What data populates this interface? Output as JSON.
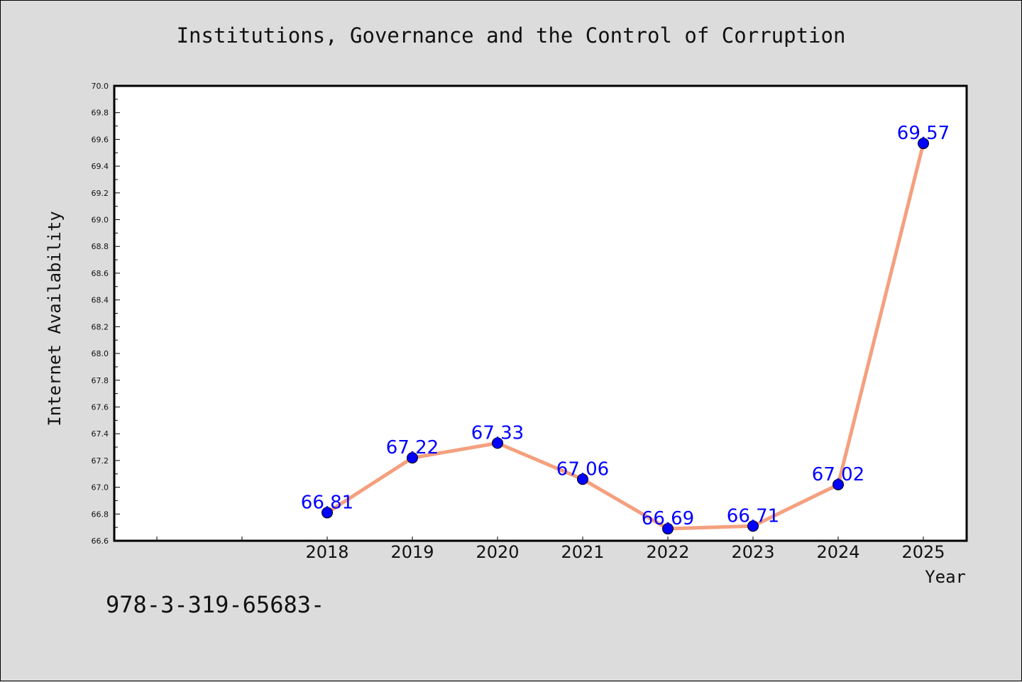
{
  "header": {
    "title": "Institutions, Governance and the Control of Corruption"
  },
  "footer": {
    "identifier": "978-3-319-65683-"
  },
  "colors": {
    "background": "#dcdcdc",
    "plot_background": "#ffffff",
    "line": "#f4a07f",
    "marker": "#0000ff",
    "data_label": "#0000ff"
  },
  "chart_data": {
    "type": "line",
    "title": "Institutions, Governance and the Control of Corruption",
    "xlabel": "Year",
    "ylabel": "Internet Availability",
    "x": [
      "2018",
      "2019",
      "2020",
      "2021",
      "2022",
      "2023",
      "2024",
      "2025"
    ],
    "series": [
      {
        "values": [
          66.81,
          67.22,
          67.33,
          67.06,
          66.69,
          66.71,
          67.02,
          69.57
        ],
        "data_labels": [
          "66.81",
          "67.22",
          "67.33",
          "67.06",
          "66.69",
          "66.71",
          "67.02",
          "69.57"
        ]
      }
    ],
    "ylim": [
      66.6,
      70.0
    ],
    "y_ticks": [
      "66.6",
      "66.8",
      "67.0",
      "67.2",
      "67.4",
      "67.6",
      "67.8",
      "68.0",
      "68.2",
      "68.4",
      "68.6",
      "68.8",
      "69.0",
      "69.2",
      "69.4",
      "69.6",
      "69.8",
      "70.0"
    ],
    "grid": false,
    "legend": "none"
  }
}
